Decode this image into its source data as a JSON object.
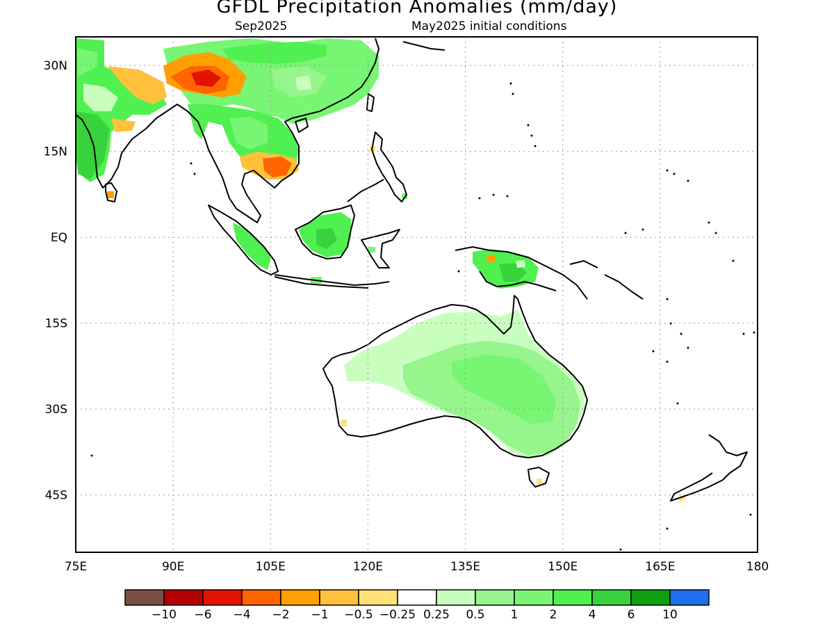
{
  "header": {
    "title": "GFDL  Precipitation  Anomalies  (mm/day)",
    "valid_month": "Sep2025",
    "init": "May2025  initial  conditions"
  },
  "axes": {
    "lon_ticks": [
      "75E",
      "90E",
      "105E",
      "120E",
      "135E",
      "150E",
      "165E",
      "180"
    ],
    "lat_ticks": [
      "30N",
      "15N",
      "EQ",
      "15S",
      "30S",
      "45S"
    ],
    "lon_values": [
      75,
      90,
      105,
      120,
      135,
      150,
      165,
      180
    ],
    "lat_values": [
      30,
      15,
      0,
      -15,
      -30,
      -45
    ],
    "lon_range": [
      75,
      180
    ],
    "lat_range": [
      -55,
      35
    ]
  },
  "colorbar": {
    "colors": [
      "#7a5043",
      "#b40000",
      "#e01400",
      "#ff6400",
      "#ffa000",
      "#ffc03c",
      "#ffe178",
      "#ffffff",
      "#c8ffbe",
      "#96f58c",
      "#78f573",
      "#50f050",
      "#37d23c",
      "#0fa00f",
      "#1e6ef0"
    ],
    "labels": [
      "−10",
      "−6",
      "−4",
      "−2",
      "−1",
      "−0.5",
      "−0.25",
      "0.25",
      "0.5",
      "1",
      "2",
      "4",
      "6",
      "10"
    ]
  },
  "map_regions": [
    {
      "name": "India",
      "level": "4"
    },
    {
      "name": "Tibet / Himalaya",
      "level": "-2"
    },
    {
      "name": "South China",
      "level": "1"
    },
    {
      "name": "Indochina",
      "level": "2"
    },
    {
      "name": "Cambodia",
      "level": "-2"
    },
    {
      "name": "Borneo",
      "level": "4"
    },
    {
      "name": "Sumatra",
      "level": "2"
    },
    {
      "name": "New Guinea",
      "level": "4"
    },
    {
      "name": "Australia",
      "level": "1"
    }
  ]
}
